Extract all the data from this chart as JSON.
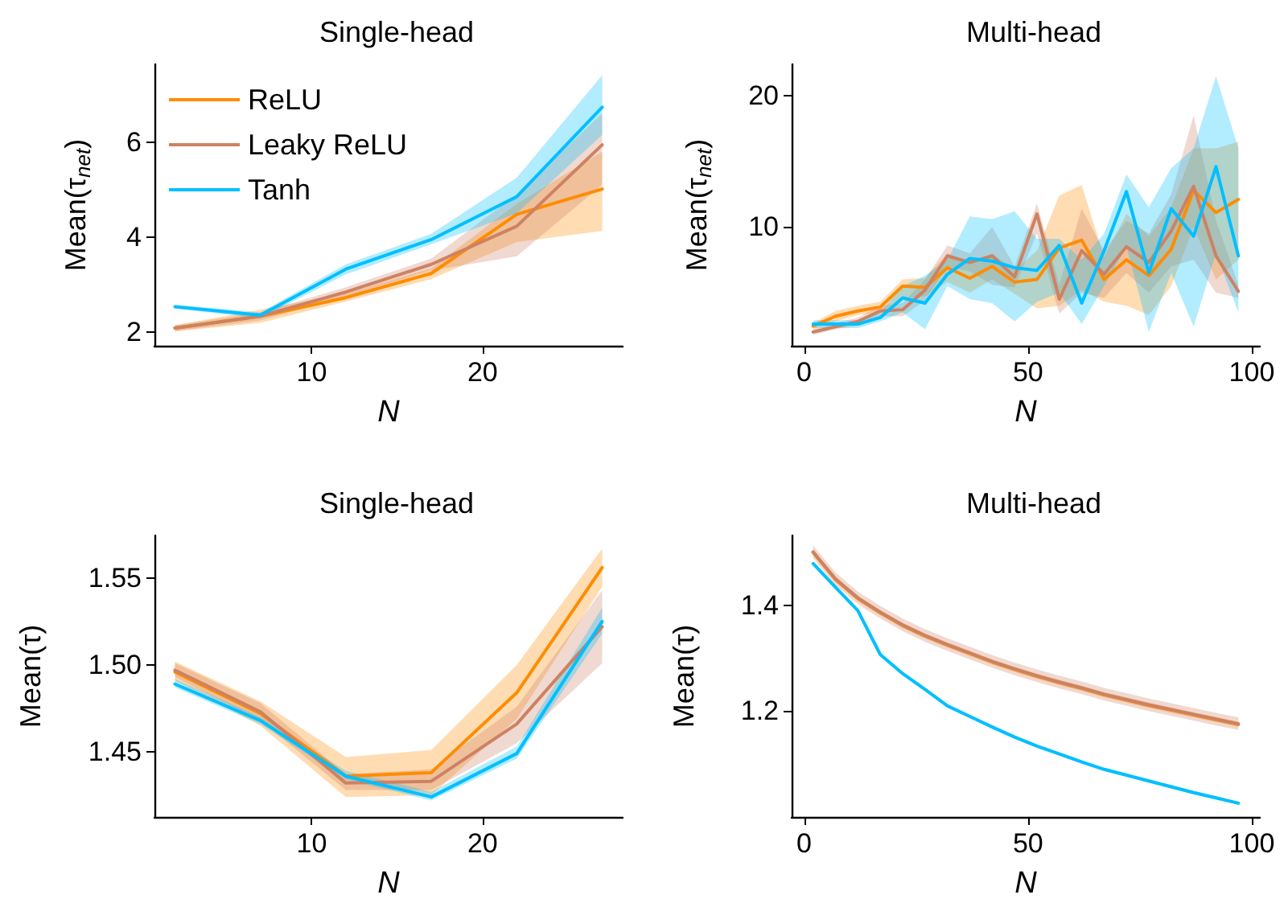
{
  "chart_data": [
    {
      "type": "line",
      "title": "Single-head",
      "xlabel": "N",
      "ylabel": "Mean(τ$_{net}$)",
      "x": [
        2,
        7,
        12,
        17,
        22,
        27
      ],
      "xlim": [
        0.8,
        28.2
      ],
      "xticks": [
        10,
        20
      ],
      "ylim": [
        1.72,
        7.63
      ],
      "yticks": [
        2,
        4,
        6
      ],
      "grid": false,
      "legend": "top left",
      "marker": "none",
      "line_style": "solid",
      "series": [
        {
          "name": "ReLU",
          "color": "#ff8c00",
          "values": [
            2.09,
            2.34,
            2.73,
            3.24,
            4.48,
            5.01
          ],
          "lower": [
            2.02,
            2.2,
            2.65,
            3.12,
            3.9,
            4.13
          ],
          "upper": [
            2.15,
            2.48,
            2.82,
            3.35,
            4.7,
            5.8
          ]
        },
        {
          "name": "Leaky ReLU",
          "color": "#cd8262",
          "values": [
            2.09,
            2.34,
            2.85,
            3.43,
            4.23,
            5.94
          ],
          "lower": [
            2.03,
            2.25,
            2.75,
            3.3,
            3.6,
            5.1
          ],
          "upper": [
            2.15,
            2.42,
            2.95,
            3.55,
            4.9,
            6.6
          ]
        },
        {
          "name": "Tanh",
          "color": "#00bfff",
          "values": [
            2.54,
            2.36,
            3.33,
            3.95,
            4.85,
            6.73
          ],
          "lower": [
            2.5,
            2.3,
            3.22,
            3.85,
            4.5,
            6.15
          ],
          "upper": [
            2.58,
            2.42,
            3.43,
            4.07,
            5.25,
            7.4
          ]
        }
      ]
    },
    {
      "type": "line",
      "title": "Multi-head",
      "xlabel": "N",
      "ylabel": "Mean(τ$_{net}$)",
      "x": [
        2,
        7,
        12,
        17,
        22,
        27,
        32,
        37,
        42,
        47,
        52,
        57,
        62,
        67,
        72,
        77,
        82,
        87,
        92,
        97
      ],
      "xlim": [
        -2.8,
        101.8
      ],
      "xticks": [
        0,
        50,
        100
      ],
      "ylim": [
        0.95,
        22.4
      ],
      "yticks": [
        10,
        20
      ],
      "grid": false,
      "marker": "none",
      "line_style": "solid",
      "series": [
        {
          "color": "#ff8c00",
          "values": [
            2.45,
            3.2,
            3.6,
            3.9,
            5.5,
            5.4,
            6.9,
            6.1,
            7.0,
            5.8,
            6.0,
            8.4,
            9.0,
            6.0,
            7.5,
            6.3,
            8.3,
            12.8,
            11.1,
            12.1
          ],
          "lower": [
            2.2,
            2.8,
            3.3,
            3.5,
            4.6,
            4.7,
            5.8,
            5.0,
            6.0,
            4.9,
            3.8,
            4.0,
            5.2,
            4.3,
            4.0,
            3.3,
            5.5,
            10.0,
            6.0,
            7.5
          ],
          "upper": [
            2.7,
            3.6,
            4.0,
            4.3,
            6.0,
            6.1,
            8.0,
            7.2,
            8.0,
            6.7,
            8.2,
            12.4,
            13.2,
            7.7,
            11.0,
            9.3,
            11.5,
            16.0,
            16.0,
            16.5
          ]
        },
        {
          "color": "#cd8262",
          "values": [
            2.0,
            2.4,
            2.8,
            3.6,
            3.7,
            5.2,
            7.8,
            7.3,
            7.8,
            6.2,
            11.0,
            4.5,
            8.2,
            6.4,
            8.5,
            7.3,
            9.7,
            13.1,
            7.8,
            5.1
          ],
          "lower": [
            1.8,
            2.2,
            2.5,
            3.2,
            3.2,
            4.4,
            7.0,
            6.6,
            5.6,
            5.4,
            9.5,
            3.4,
            5.0,
            4.6,
            6.5,
            5.0,
            7.0,
            7.5,
            5.0,
            4.6
          ],
          "upper": [
            2.2,
            2.7,
            3.1,
            4.0,
            4.2,
            6.0,
            8.6,
            8.0,
            10.0,
            7.0,
            11.8,
            5.6,
            11.4,
            8.2,
            10.5,
            9.5,
            12.5,
            18.5,
            10.5,
            5.6
          ]
        },
        {
          "color": "#00bfff",
          "values": [
            2.6,
            2.6,
            2.6,
            3.1,
            4.6,
            4.2,
            6.4,
            7.6,
            7.4,
            6.9,
            6.7,
            8.6,
            4.2,
            8.2,
            12.7,
            6.5,
            11.4,
            9.3,
            14.6,
            7.8
          ],
          "lower": [
            2.3,
            2.3,
            2.3,
            2.8,
            3.5,
            2.2,
            5.5,
            4.5,
            4.2,
            2.8,
            4.3,
            5.0,
            2.6,
            5.5,
            8.5,
            2.0,
            6.5,
            2.4,
            8.0,
            3.5
          ],
          "upper": [
            2.9,
            2.9,
            2.9,
            3.5,
            5.5,
            6.3,
            7.5,
            10.8,
            10.6,
            11.2,
            9.1,
            9.1,
            7.5,
            9.5,
            14.0,
            11.5,
            14.5,
            16.0,
            21.5,
            16.0
          ]
        }
      ]
    },
    {
      "type": "line",
      "title": "Single-head",
      "xlabel": "N",
      "ylabel": "Mean(τ)",
      "x": [
        2,
        7,
        12,
        17,
        22,
        27
      ],
      "xlim": [
        0.8,
        28.2
      ],
      "xticks": [
        10,
        20
      ],
      "ylim": [
        1.4125,
        1.5745
      ],
      "yticks": [
        1.45,
        {
          "value": 1.5,
          "label": "1.50"
        },
        1.55
      ],
      "grid": false,
      "marker": "none",
      "line_style": "solid",
      "series": [
        {
          "color": "#ff8c00",
          "values": [
            1.496,
            1.472,
            1.436,
            1.438,
            1.484,
            1.556
          ],
          "lower": [
            1.491,
            1.465,
            1.424,
            1.425,
            1.469,
            1.545
          ],
          "upper": [
            1.502,
            1.479,
            1.447,
            1.451,
            1.5,
            1.567
          ]
        },
        {
          "color": "#cd8262",
          "values": [
            1.497,
            1.473,
            1.432,
            1.433,
            1.466,
            1.522
          ],
          "lower": [
            1.493,
            1.468,
            1.428,
            1.428,
            1.455,
            1.501
          ],
          "upper": [
            1.501,
            1.478,
            1.437,
            1.44,
            1.476,
            1.543
          ]
        },
        {
          "color": "#00bfff",
          "values": [
            1.489,
            1.468,
            1.436,
            1.424,
            1.449,
            1.525
          ],
          "lower": [
            1.487,
            1.466,
            1.434,
            1.422,
            1.446,
            1.518
          ],
          "upper": [
            1.492,
            1.47,
            1.439,
            1.427,
            1.453,
            1.533
          ]
        }
      ]
    },
    {
      "type": "line",
      "title": "Multi-head",
      "xlabel": "N",
      "ylabel": "Mean(τ)",
      "x": [
        2,
        7,
        12,
        17,
        22,
        27,
        32,
        37,
        42,
        47,
        52,
        57,
        62,
        67,
        72,
        77,
        82,
        87,
        92,
        97
      ],
      "xlim": [
        -2.8,
        101.8
      ],
      "xticks": [
        0,
        50,
        100
      ],
      "ylim": [
        1.0,
        1.532
      ],
      "yticks": [
        1.2,
        1.4
      ],
      "grid": false,
      "marker": "none",
      "line_style": "solid",
      "series": [
        {
          "color": "#ff8c00",
          "values": [
            1.5,
            1.449,
            1.413,
            1.386,
            1.362,
            1.342,
            1.325,
            1.309,
            1.293,
            1.279,
            1.266,
            1.254,
            1.243,
            1.231,
            1.221,
            1.211,
            1.202,
            1.193,
            1.184,
            1.175
          ],
          "lower": [
            1.495,
            1.444,
            1.408,
            1.381,
            1.357,
            1.337,
            1.32,
            1.304,
            1.288,
            1.274,
            1.261,
            1.249,
            1.238,
            1.226,
            1.216,
            1.206,
            1.197,
            1.188,
            1.179,
            1.17
          ],
          "upper": [
            1.505,
            1.454,
            1.418,
            1.391,
            1.367,
            1.347,
            1.33,
            1.314,
            1.298,
            1.284,
            1.271,
            1.259,
            1.248,
            1.236,
            1.226,
            1.216,
            1.207,
            1.198,
            1.189,
            1.18
          ]
        },
        {
          "color": "#cd8262",
          "values": [
            1.501,
            1.45,
            1.414,
            1.387,
            1.363,
            1.343,
            1.326,
            1.31,
            1.294,
            1.28,
            1.267,
            1.255,
            1.244,
            1.232,
            1.222,
            1.212,
            1.203,
            1.194,
            1.185,
            1.176
          ],
          "lower": [
            1.489,
            1.438,
            1.402,
            1.375,
            1.351,
            1.331,
            1.314,
            1.298,
            1.282,
            1.268,
            1.255,
            1.243,
            1.232,
            1.22,
            1.21,
            1.2,
            1.191,
            1.182,
            1.173,
            1.164
          ],
          "upper": [
            1.513,
            1.462,
            1.426,
            1.399,
            1.375,
            1.355,
            1.338,
            1.322,
            1.306,
            1.292,
            1.279,
            1.267,
            1.256,
            1.244,
            1.234,
            1.224,
            1.215,
            1.206,
            1.197,
            1.188
          ]
        },
        {
          "color": "#00bfff",
          "values": [
            1.479,
            1.434,
            1.39,
            1.307,
            1.271,
            1.241,
            1.21,
            1.19,
            1.17,
            1.151,
            1.134,
            1.119,
            1.104,
            1.09,
            1.079,
            1.068,
            1.057,
            1.046,
            1.036,
            1.026
          ],
          "lower": [
            1.476,
            1.431,
            1.387,
            1.304,
            1.268,
            1.238,
            1.207,
            1.187,
            1.167,
            1.148,
            1.131,
            1.116,
            1.101,
            1.087,
            1.076,
            1.065,
            1.054,
            1.043,
            1.033,
            1.023
          ],
          "upper": [
            1.482,
            1.437,
            1.393,
            1.31,
            1.274,
            1.244,
            1.213,
            1.193,
            1.173,
            1.154,
            1.137,
            1.122,
            1.107,
            1.093,
            1.082,
            1.071,
            1.06,
            1.049,
            1.039,
            1.029
          ]
        }
      ]
    }
  ]
}
